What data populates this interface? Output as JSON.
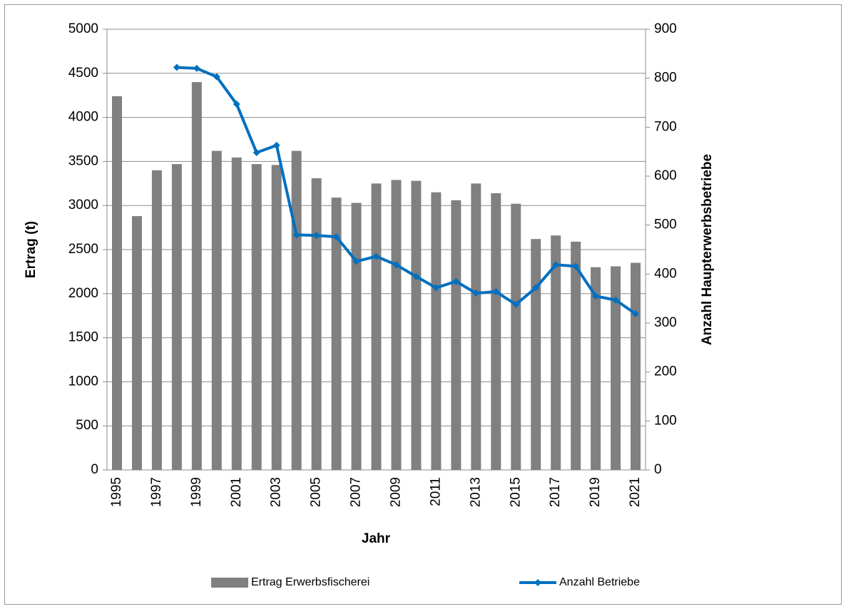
{
  "chart_data": {
    "type": "combo",
    "x_label": "Jahr",
    "y_label": "Ertrag (t)",
    "y2_label": "Anzahl Haupterwerbsbetriebe",
    "categories": [
      "1995",
      null,
      "1997",
      null,
      "1999",
      null,
      "2001",
      null,
      "2003",
      null,
      "2005",
      null,
      "2007",
      null,
      "2009",
      null,
      "2011",
      null,
      "2013",
      null,
      "2015",
      null,
      "2017",
      null,
      "2019",
      null,
      "2021"
    ],
    "series": [
      {
        "name": "Ertrag Erwerbsfischerei",
        "type": "bar",
        "color": "#808080",
        "values": [
          4240,
          2880,
          3400,
          3470,
          4400,
          3620,
          3545,
          3470,
          3460,
          3620,
          3310,
          3090,
          3030,
          3250,
          3290,
          3280,
          3150,
          3060,
          3250,
          3140,
          3020,
          2620,
          2660,
          2590,
          2300,
          2310,
          2350
        ]
      },
      {
        "name": "Anzahl Betriebe",
        "type": "line",
        "axis": "y2",
        "color": "#0070c0",
        "values": [
          null,
          null,
          null,
          822,
          820,
          803,
          747,
          648,
          663,
          480,
          479,
          476,
          426,
          436,
          419,
          395,
          372,
          385,
          361,
          364,
          338,
          372,
          419,
          416,
          355,
          347,
          319
        ]
      }
    ],
    "ylim": [
      0,
      5000
    ],
    "yticks": [
      0,
      500,
      1000,
      1500,
      2000,
      2500,
      3000,
      3500,
      4000,
      4500,
      5000
    ],
    "y2lim": [
      0,
      900
    ],
    "y2ticks": [
      0,
      100,
      200,
      300,
      400,
      500,
      600,
      700,
      800,
      900
    ],
    "grid": true,
    "legend": "bottom"
  }
}
